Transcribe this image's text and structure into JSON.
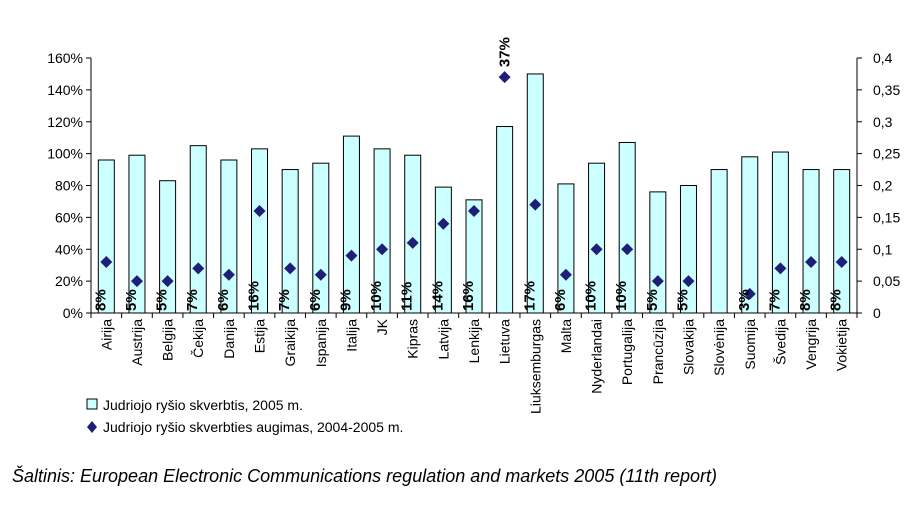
{
  "chart_data": {
    "type": "bar",
    "categories": [
      "Airija",
      "Austrija",
      "Belgija",
      "Čekija",
      "Danija",
      "Estija",
      "Graikija",
      "Ispanija",
      "Italija",
      "JK",
      "Kipras",
      "Latvija",
      "Lenkija",
      "Lietuva",
      "Liuksemburgas",
      "Malta",
      "Nyderlandai",
      "Portugalija",
      "Prancūzija",
      "Slovakija",
      "Slovėnija",
      "Suomija",
      "Švedija",
      "Vengrija",
      "Vokietija"
    ],
    "series": [
      {
        "name": "Judriojo ryšio skverbtis, 2005 m.",
        "axis": "left",
        "mark": "bar",
        "color": "#ccffff",
        "values": [
          96,
          99,
          83,
          105,
          96,
          103,
          90,
          94,
          111,
          103,
          99,
          79,
          71,
          117,
          150,
          81,
          94,
          107,
          76,
          80,
          90,
          98,
          101,
          90,
          90
        ]
      },
      {
        "name": "Judriojo ryšio skverbties augimas, 2004-2005 m.",
        "axis": "right",
        "mark": "diamond",
        "color": "#1f1f7a",
        "values": [
          0.08,
          0.05,
          0.05,
          0.07,
          0.06,
          0.16,
          0.07,
          0.06,
          0.09,
          0.1,
          0.11,
          0.14,
          0.16,
          0.37,
          0.17,
          0.06,
          0.1,
          0.1,
          0.05,
          0.05,
          null,
          0.03,
          0.07,
          0.08,
          0.08
        ],
        "labels": [
          "8%",
          "5%",
          "5%",
          "7%",
          "6%",
          "16%",
          "7%",
          "6%",
          "9%",
          "10%",
          "11%",
          "14%",
          "16%",
          "37%",
          "17%",
          "6%",
          "10%",
          "10%",
          "5%",
          "5%",
          "",
          "3%",
          "7%",
          "8%",
          "8%"
        ]
      }
    ],
    "ylim_left": [
      0,
      160
    ],
    "yticks_left": [
      "0%",
      "20%",
      "40%",
      "60%",
      "80%",
      "100%",
      "120%",
      "140%",
      "160%"
    ],
    "ylim_right": [
      0,
      0.4
    ],
    "yticks_right": [
      "0",
      "0,05",
      "0,1",
      "0,15",
      "0,2",
      "0,25",
      "0,3",
      "0,35",
      "0,4"
    ],
    "grid": false,
    "legend_position": "bottom-left"
  },
  "source_note": "Šaltinis: European Electronic Communications regulation and markets 2005 (11th report)"
}
